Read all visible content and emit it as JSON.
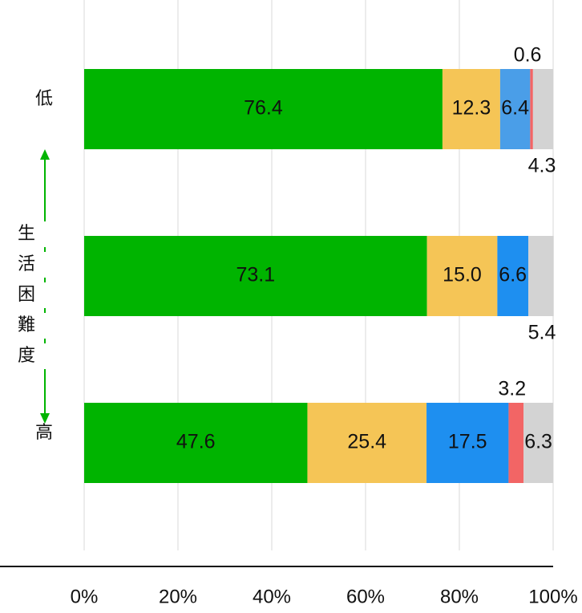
{
  "chart_data": {
    "type": "bar",
    "orientation": "horizontal",
    "stacked": true,
    "categories": [
      "低",
      "",
      "高"
    ],
    "series": [
      {
        "name": "segment-1",
        "color": "#00b400",
        "values": [
          76.4,
          73.1,
          47.6
        ],
        "labels": [
          "76.4",
          "73.1",
          "47.6"
        ]
      },
      {
        "name": "segment-2",
        "color": "#f5c556",
        "values": [
          12.3,
          15.0,
          25.4
        ],
        "labels": [
          "12.3",
          "15.0",
          "25.4"
        ]
      },
      {
        "name": "segment-3",
        "color": "#4a9ee8",
        "values": [
          6.4,
          6.6,
          17.5
        ],
        "labels": [
          "6.4",
          "6.6",
          "17.5"
        ],
        "row_colors": [
          "#4a9ee8",
          "#1e8ff0",
          "#1e8ff0"
        ]
      },
      {
        "name": "segment-4",
        "color": "#f26565",
        "values": [
          0.6,
          0,
          3.2
        ],
        "labels": [
          "0.6",
          "",
          "3.2"
        ]
      },
      {
        "name": "segment-5",
        "color": "#d3d3d3",
        "values": [
          4.3,
          5.4,
          6.3
        ],
        "labels": [
          "4.3",
          "5.4",
          "6.3"
        ]
      }
    ],
    "xlim": [
      0,
      100
    ],
    "x_ticks": [
      0,
      20,
      40,
      60,
      80,
      100
    ],
    "x_tick_labels": [
      "0%",
      "20%",
      "40%",
      "60%",
      "80%",
      "100%"
    ],
    "grid": true,
    "y_axis_title": "生活困難度",
    "y_axis_arrow": "both-directions",
    "arrow_color": "#00b400"
  }
}
